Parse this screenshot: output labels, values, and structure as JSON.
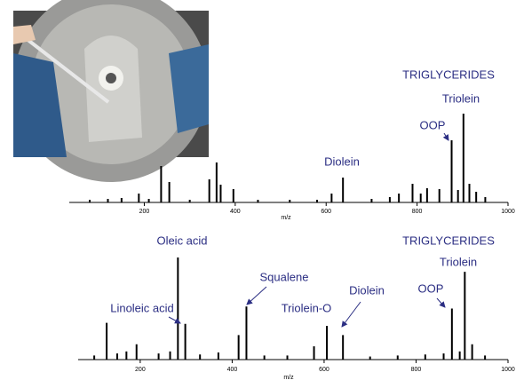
{
  "chart_data": [
    {
      "type": "spectrum",
      "x_label": "m/z",
      "color": "#000000",
      "xlim": [
        35,
        1000
      ],
      "xticks": [
        200,
        400,
        600,
        800,
        1000
      ],
      "ylim": [
        0,
        100
      ],
      "x": [
        80,
        120,
        150,
        188,
        210,
        237,
        255,
        300,
        343,
        359,
        368,
        396,
        450,
        520,
        580,
        612,
        637,
        700,
        740,
        760,
        790,
        808,
        822,
        849,
        876,
        890,
        902,
        915,
        930,
        950
      ],
      "values": [
        3,
        4,
        5,
        10,
        4,
        41,
        23,
        3,
        26,
        45,
        20,
        15,
        3,
        3,
        3,
        10,
        28,
        4,
        6,
        10,
        21,
        10,
        16,
        15,
        70,
        14,
        100,
        21,
        12,
        6
      ],
      "annotations": [
        "TRIGLYCERIDES",
        "Triolein",
        "OOP",
        "Diolein"
      ]
    },
    {
      "type": "spectrum",
      "x_label": "m/z",
      "color": "#000000",
      "xlim": [
        65,
        1000
      ],
      "xticks": [
        200,
        400,
        600,
        800,
        1000
      ],
      "ylim": [
        0,
        100
      ],
      "x": [
        100,
        127,
        150,
        170,
        192,
        240,
        265,
        282,
        298,
        330,
        370,
        414,
        431,
        470,
        520,
        578,
        606,
        641,
        700,
        760,
        820,
        860,
        878,
        895,
        906,
        922,
        950
      ],
      "values": [
        4,
        36,
        6,
        8,
        15,
        6,
        8,
        100,
        35,
        5,
        7,
        24,
        52,
        4,
        4,
        13,
        33,
        24,
        3,
        4,
        5,
        6,
        50,
        8,
        86,
        15,
        4
      ],
      "annotations": [
        "Oleic acid",
        "TRIGLYCERIDES",
        "Triolein",
        "Squalene",
        "Linoleic acid",
        "Triolein-O",
        "Diolein",
        "OOP"
      ]
    }
  ]
}
